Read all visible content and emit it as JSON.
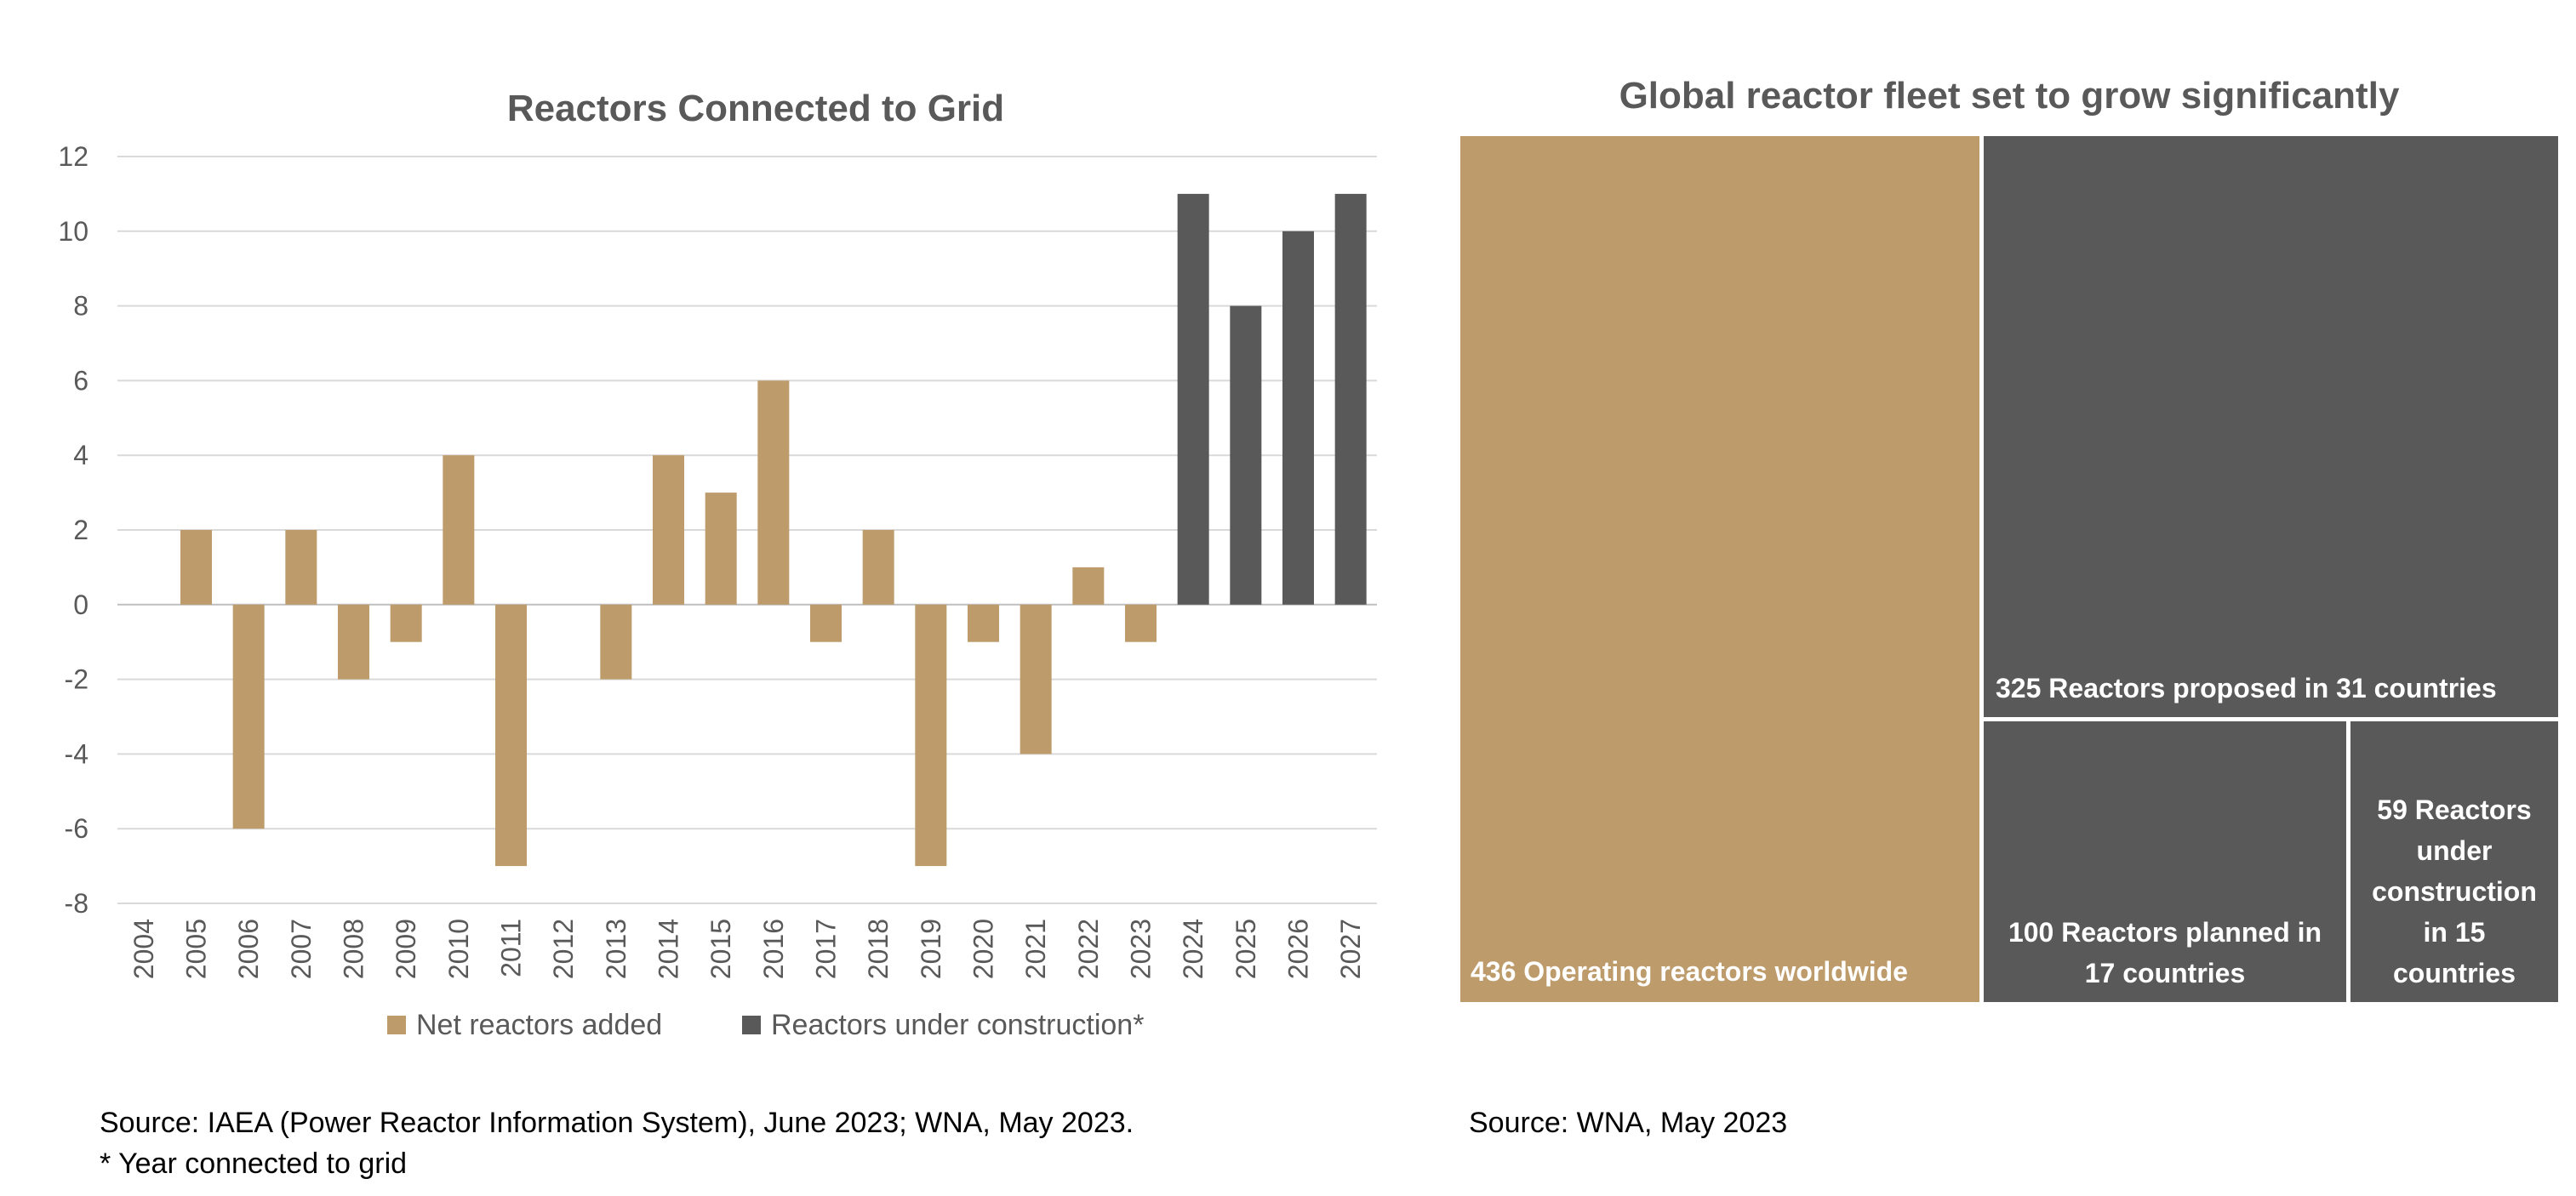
{
  "chart_data": [
    {
      "type": "bar",
      "title": "Reactors Connected to Grid",
      "xlabel": "",
      "ylabel": "",
      "ylim": [
        -8,
        12
      ],
      "yticks": [
        12,
        10,
        8,
        6,
        4,
        2,
        0,
        -2,
        -4,
        -6,
        -8
      ],
      "grid": true,
      "legend_position": "bottom",
      "categories": [
        "2004",
        "2005",
        "2006",
        "2007",
        "2008",
        "2009",
        "2010",
        "2011",
        "2012",
        "2013",
        "2014",
        "2015",
        "2016",
        "2017",
        "2018",
        "2019",
        "2020",
        "2021",
        "2022",
        "2023",
        "2024",
        "2025",
        "2026",
        "2027"
      ],
      "series": [
        {
          "name": "Net reactors added",
          "color": "#bd9b6b",
          "values": [
            0,
            2,
            -6,
            2,
            -2,
            -1,
            4,
            -7,
            0,
            -2,
            4,
            3,
            6,
            -1,
            2,
            -7,
            -1,
            -4,
            1,
            -1,
            null,
            null,
            null,
            null
          ]
        },
        {
          "name": "Reactors under construction*",
          "color": "#595959",
          "values": [
            null,
            null,
            null,
            null,
            null,
            null,
            null,
            null,
            null,
            null,
            null,
            null,
            null,
            null,
            null,
            null,
            null,
            null,
            null,
            null,
            11,
            8,
            10,
            11
          ]
        }
      ]
    },
    {
      "type": "treemap",
      "title": "Global reactor fleet set to grow significantly",
      "items": [
        {
          "label": "436 Operating reactors worldwide",
          "value": 436,
          "color": "#bd9b6b"
        },
        {
          "label": "325 Reactors proposed in 31 countries",
          "value": 325,
          "color": "#595959"
        },
        {
          "label": "100 Reactors planned in 17 countries",
          "value": 100,
          "color": "#595959"
        },
        {
          "label": "59 Reactors under construction in 15 countries",
          "value": 59,
          "color": "#595959"
        }
      ]
    }
  ],
  "sources": {
    "left_line1": "Source: IAEA (Power Reactor Information System), June 2023; WNA, May 2023.",
    "left_line2": "* Year connected to grid",
    "right": "Source: WNA, May 2023"
  }
}
